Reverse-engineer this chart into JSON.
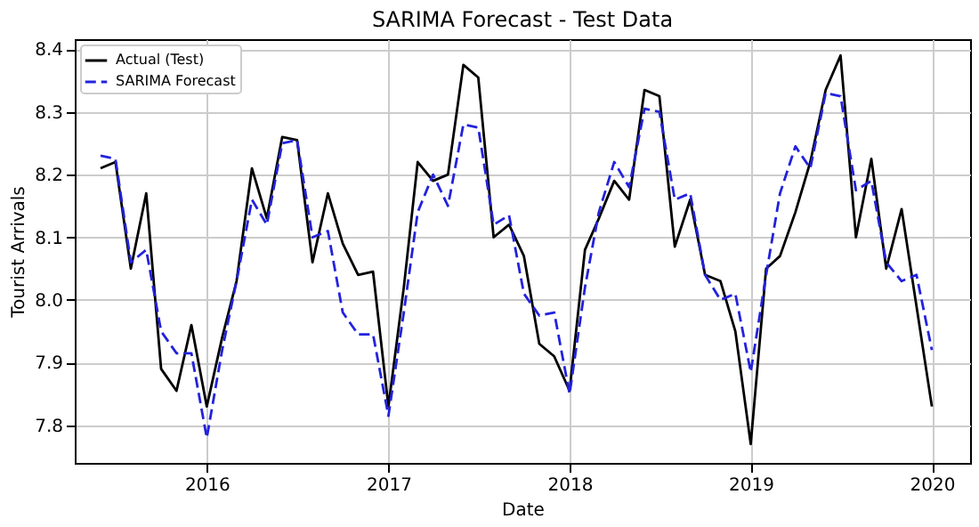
{
  "chart_data": {
    "type": "line",
    "title": "SARIMA Forecast - Test Data",
    "xlabel": "Date",
    "ylabel": "Tourist Arrivals",
    "x": [
      "2015-06",
      "2015-07",
      "2015-08",
      "2015-09",
      "2015-10",
      "2015-11",
      "2015-12",
      "2016-01",
      "2016-02",
      "2016-03",
      "2016-04",
      "2016-05",
      "2016-06",
      "2016-07",
      "2016-08",
      "2016-09",
      "2016-10",
      "2016-11",
      "2016-12",
      "2017-01",
      "2017-02",
      "2017-03",
      "2017-04",
      "2017-05",
      "2017-06",
      "2017-07",
      "2017-08",
      "2017-09",
      "2017-10",
      "2017-11",
      "2017-12",
      "2018-01",
      "2018-02",
      "2018-03",
      "2018-04",
      "2018-05",
      "2018-06",
      "2018-07",
      "2018-08",
      "2018-09",
      "2018-10",
      "2018-11",
      "2018-12",
      "2019-01",
      "2019-02",
      "2019-03",
      "2019-04",
      "2019-05",
      "2019-06",
      "2019-07",
      "2019-08",
      "2019-09",
      "2019-10",
      "2019-11",
      "2019-12",
      "2020-01"
    ],
    "series": [
      {
        "name": "Actual (Test)",
        "color": "#000000",
        "line_style": "solid",
        "values": [
          8.21,
          8.22,
          8.05,
          8.17,
          7.89,
          7.855,
          7.96,
          7.83,
          7.94,
          8.03,
          8.21,
          8.13,
          8.26,
          8.255,
          8.06,
          8.17,
          8.09,
          8.04,
          8.045,
          7.83,
          8.02,
          8.22,
          8.19,
          8.2,
          8.375,
          8.355,
          8.1,
          8.12,
          8.07,
          7.93,
          7.91,
          7.855,
          8.08,
          8.13,
          8.19,
          8.16,
          8.335,
          8.325,
          8.085,
          8.16,
          8.04,
          8.03,
          7.95,
          7.77,
          8.05,
          8.07,
          8.14,
          8.22,
          8.335,
          8.39,
          8.1,
          8.225,
          8.05,
          8.145,
          7.99,
          7.83
        ]
      },
      {
        "name": "SARIMA Forecast",
        "color": "#2222dd",
        "line_style": "dashed",
        "values": [
          8.23,
          8.225,
          8.06,
          8.08,
          7.95,
          7.915,
          7.915,
          7.78,
          7.92,
          8.03,
          8.16,
          8.12,
          8.25,
          8.255,
          8.1,
          8.11,
          7.98,
          7.945,
          7.945,
          7.815,
          7.98,
          8.14,
          8.2,
          8.15,
          8.28,
          8.275,
          8.12,
          8.135,
          8.01,
          7.975,
          7.98,
          7.85,
          8.02,
          8.14,
          8.22,
          8.18,
          8.305,
          8.3,
          8.16,
          8.17,
          8.04,
          8.0,
          8.01,
          7.885,
          8.04,
          8.17,
          8.245,
          8.21,
          8.33,
          8.325,
          8.175,
          8.19,
          8.06,
          8.03,
          8.04,
          7.92
        ]
      }
    ],
    "xlim": [
      "2015-04-10",
      "2020-03-18"
    ],
    "xticks": [
      {
        "value": "2016-01",
        "label": "2016"
      },
      {
        "value": "2017-01",
        "label": "2017"
      },
      {
        "value": "2018-01",
        "label": "2018"
      },
      {
        "value": "2019-01",
        "label": "2019"
      },
      {
        "value": "2020-01",
        "label": "2020"
      }
    ],
    "ylim": [
      7.74,
      8.416
    ],
    "yticks": [
      7.8,
      7.9,
      {
        "value": 8,
        "label": "8.0"
      },
      8.1,
      8.2,
      8.3,
      8.4
    ],
    "grid": true,
    "legend": "top left"
  }
}
